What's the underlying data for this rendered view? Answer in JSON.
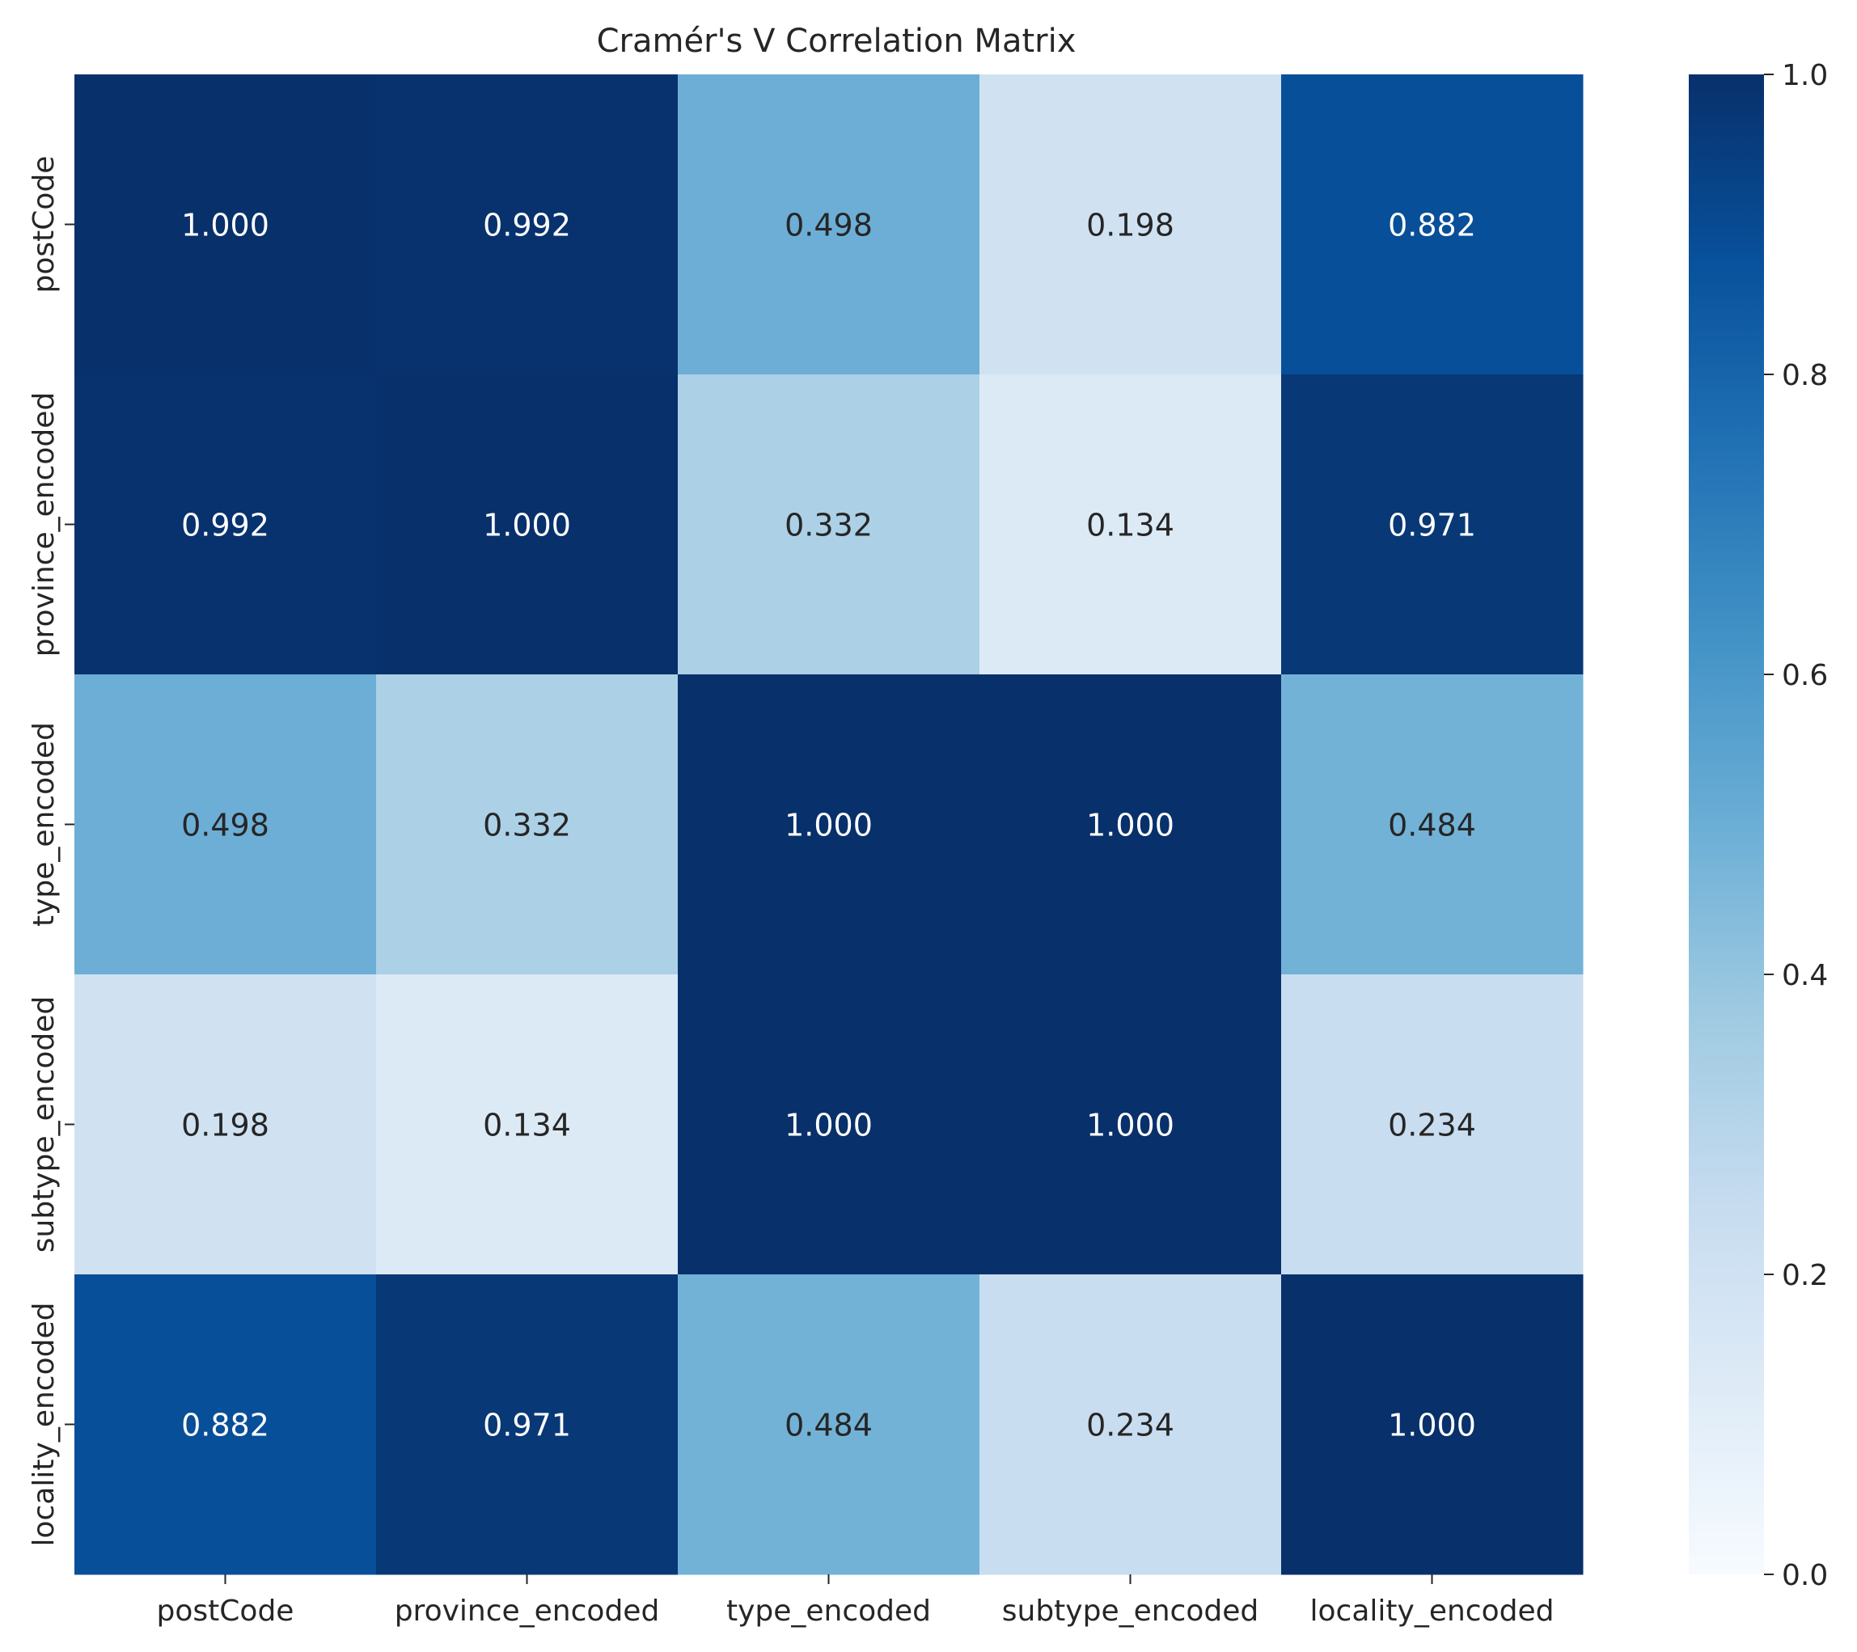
{
  "chart_data": {
    "type": "heatmap",
    "title": "Cramér's V Correlation Matrix",
    "x_categories": [
      "postCode",
      "province_encoded",
      "type_encoded",
      "subtype_encoded",
      "locality_encoded"
    ],
    "y_categories": [
      "postCode",
      "province_encoded",
      "type_encoded",
      "subtype_encoded",
      "locality_encoded"
    ],
    "values": [
      [
        1.0,
        0.992,
        0.498,
        0.198,
        0.882
      ],
      [
        0.992,
        1.0,
        0.332,
        0.134,
        0.971
      ],
      [
        0.498,
        0.332,
        1.0,
        1.0,
        0.484
      ],
      [
        0.198,
        0.134,
        1.0,
        1.0,
        0.234
      ],
      [
        0.882,
        0.971,
        0.484,
        0.234,
        1.0
      ]
    ],
    "value_format": "3 decimals",
    "colormap": "Blues",
    "colorbar": {
      "range": [
        0.0,
        1.0
      ],
      "ticks": [
        "0.0",
        "0.2",
        "0.4",
        "0.6",
        "0.8",
        "1.0"
      ]
    },
    "colors": {
      "low": "#f7fbff",
      "high": "#08306b",
      "text_dark": "#262626",
      "text_light": "#ffffff"
    }
  }
}
